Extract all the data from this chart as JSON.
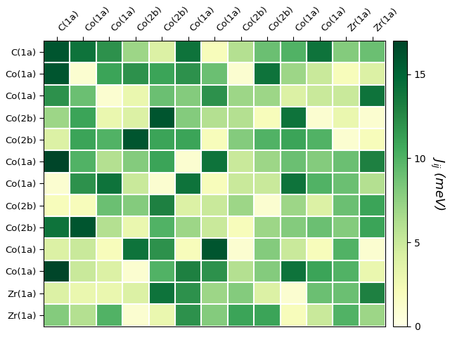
{
  "labels": [
    "C(1a)",
    "Co(1a)",
    "Co(1a)",
    "Co(2b)",
    "Co(2b)",
    "Co(1a)",
    "Co(1a)",
    "Co(2b)",
    "Co(2b)",
    "Co(1a)",
    "Co(1a)",
    "Zr(1a)",
    "Zr(1a)"
  ],
  "data": [
    [
      16,
      14,
      12,
      7,
      4,
      14,
      2,
      6,
      9,
      10,
      14,
      8,
      9
    ],
    [
      16,
      1,
      11,
      12,
      11,
      12,
      9,
      1,
      14,
      7,
      5,
      2,
      4
    ],
    [
      12,
      9,
      1,
      3,
      9,
      8,
      12,
      7,
      7,
      4,
      5,
      5,
      14
    ],
    [
      7,
      11,
      3,
      4,
      16,
      8,
      6,
      6,
      2,
      14,
      1,
      3,
      1
    ],
    [
      4,
      11,
      10,
      16,
      11,
      11,
      2,
      8,
      10,
      11,
      10,
      1,
      2
    ],
    [
      17,
      10,
      6,
      8,
      11,
      1,
      14,
      5,
      7,
      9,
      8,
      9,
      13
    ],
    [
      1,
      12,
      14,
      5,
      1,
      14,
      2,
      5,
      5,
      14,
      10,
      9,
      6
    ],
    [
      2,
      2,
      9,
      8,
      13,
      4,
      5,
      7,
      1,
      7,
      4,
      9,
      11
    ],
    [
      14,
      16,
      6,
      3,
      10,
      7,
      5,
      2,
      7,
      8,
      9,
      8,
      11
    ],
    [
      4,
      5,
      2,
      14,
      12,
      2,
      16,
      1,
      8,
      5,
      2,
      10,
      1
    ],
    [
      17,
      5,
      4,
      1,
      10,
      13,
      12,
      6,
      8,
      14,
      11,
      10,
      3
    ],
    [
      4,
      3,
      3,
      4,
      14,
      12,
      7,
      8,
      4,
      1,
      9,
      9,
      13
    ],
    [
      8,
      6,
      10,
      1,
      3,
      12,
      8,
      11,
      11,
      2,
      5,
      10,
      7
    ]
  ],
  "vmin": 0,
  "vmax": 17,
  "cmap": "YlGn",
  "colorbar_label": "$J_{ij}$ (meV)",
  "colorbar_ticks": [
    0,
    5,
    10,
    15
  ],
  "figsize": [
    6.4,
    4.8
  ],
  "dpi": 100
}
